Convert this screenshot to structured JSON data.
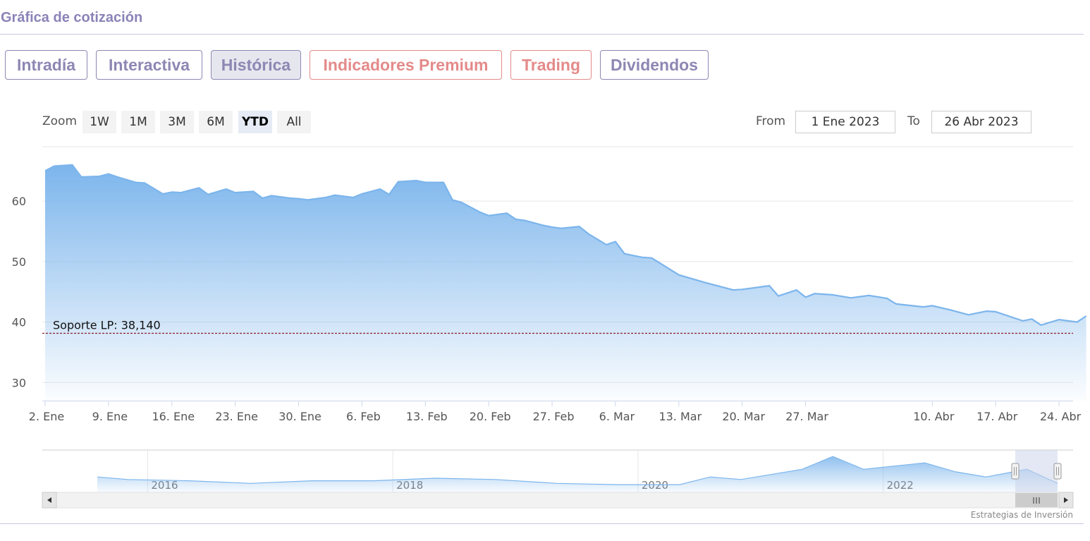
{
  "section_title": "Gráfica de cotización",
  "tabs": [
    {
      "label": "Intradía",
      "active": false,
      "premium": false
    },
    {
      "label": "Interactiva",
      "active": false,
      "premium": false
    },
    {
      "label": "Histórica",
      "active": true,
      "premium": false
    },
    {
      "label": "Indicadores Premium",
      "active": false,
      "premium": true
    },
    {
      "label": "Trading",
      "active": false,
      "premium": true
    },
    {
      "label": "Dividendos",
      "active": false,
      "premium": false
    }
  ],
  "range_selector": {
    "zoom_label": "Zoom",
    "buttons": [
      "1W",
      "1M",
      "3M",
      "6M",
      "YTD",
      "All"
    ],
    "selected": "YTD",
    "from_label": "From",
    "from_value": "1 Ene 2023",
    "to_label": "To",
    "to_value": "26 Abr 2023"
  },
  "credits": "Estrategias de Inversión",
  "colors": {
    "series": "#7cb5ec",
    "support_line": "#8b1a2b",
    "tab_border": "#8d87b3",
    "premium_tab": "#e48a8a",
    "navigator_mask": "#ccd6eb"
  },
  "chart_data": {
    "type": "area",
    "title": "",
    "ylim": [
      27,
      69
    ],
    "y_ticks": [
      30,
      40,
      50,
      60
    ],
    "x_ticks": [
      "2. Ene",
      "9. Ene",
      "16. Ene",
      "23. Ene",
      "30. Ene",
      "6. Feb",
      "13. Feb",
      "20. Feb",
      "27. Feb",
      "6. Mar",
      "13. Mar",
      "20. Mar",
      "27. Mar",
      "10. Abr",
      "17. Abr",
      "24. Abr"
    ],
    "grid": true,
    "x_range": [
      "2023-01-02",
      "2023-04-26"
    ],
    "series": [
      {
        "values": [
          [
            "2023-01-02",
            65.0
          ],
          [
            "2023-01-03",
            65.8
          ],
          [
            "2023-01-05",
            66.0
          ],
          [
            "2023-01-06",
            64.0
          ],
          [
            "2023-01-08",
            64.1
          ],
          [
            "2023-01-09",
            64.5
          ],
          [
            "2023-01-10",
            64.0
          ],
          [
            "2023-01-12",
            63.1
          ],
          [
            "2023-01-13",
            63.0
          ],
          [
            "2023-01-15",
            61.2
          ],
          [
            "2023-01-16",
            61.5
          ],
          [
            "2023-01-17",
            61.4
          ],
          [
            "2023-01-19",
            62.2
          ],
          [
            "2023-01-20",
            61.1
          ],
          [
            "2023-01-22",
            62.0
          ],
          [
            "2023-01-23",
            61.4
          ],
          [
            "2023-01-25",
            61.6
          ],
          [
            "2023-01-26",
            60.5
          ],
          [
            "2023-01-27",
            60.9
          ],
          [
            "2023-01-29",
            60.5
          ],
          [
            "2023-01-30",
            60.4
          ],
          [
            "2023-01-31",
            60.2
          ],
          [
            "2023-02-02",
            60.6
          ],
          [
            "2023-02-03",
            61.0
          ],
          [
            "2023-02-05",
            60.6
          ],
          [
            "2023-02-06",
            61.2
          ],
          [
            "2023-02-08",
            62.0
          ],
          [
            "2023-02-09",
            61.1
          ],
          [
            "2023-02-10",
            63.2
          ],
          [
            "2023-02-12",
            63.4
          ],
          [
            "2023-02-13",
            63.1
          ],
          [
            "2023-02-15",
            63.1
          ],
          [
            "2023-02-16",
            60.2
          ],
          [
            "2023-02-17",
            59.8
          ],
          [
            "2023-02-19",
            58.2
          ],
          [
            "2023-02-20",
            57.6
          ],
          [
            "2023-02-22",
            58.0
          ],
          [
            "2023-02-23",
            57.0
          ],
          [
            "2023-02-24",
            56.8
          ],
          [
            "2023-02-26",
            56.0
          ],
          [
            "2023-02-27",
            55.7
          ],
          [
            "2023-02-28",
            55.5
          ],
          [
            "2023-03-02",
            55.8
          ],
          [
            "2023-03-03",
            54.6
          ],
          [
            "2023-03-05",
            52.8
          ],
          [
            "2023-03-06",
            53.3
          ],
          [
            "2023-03-07",
            51.3
          ],
          [
            "2023-03-09",
            50.7
          ],
          [
            "2023-03-10",
            50.6
          ],
          [
            "2023-03-13",
            47.8
          ],
          [
            "2023-03-16",
            46.5
          ],
          [
            "2023-03-19",
            45.3
          ],
          [
            "2023-03-20",
            45.4
          ],
          [
            "2023-03-23",
            46.0
          ],
          [
            "2023-03-24",
            44.3
          ],
          [
            "2023-03-26",
            45.3
          ],
          [
            "2023-03-27",
            44.1
          ],
          [
            "2023-03-28",
            44.7
          ],
          [
            "2023-03-30",
            44.5
          ],
          [
            "2023-04-01",
            44.0
          ],
          [
            "2023-04-03",
            44.4
          ],
          [
            "2023-04-05",
            43.9
          ],
          [
            "2023-04-06",
            43.0
          ],
          [
            "2023-04-09",
            42.5
          ],
          [
            "2023-04-10",
            42.7
          ],
          [
            "2023-04-12",
            42.0
          ],
          [
            "2023-04-14",
            41.2
          ],
          [
            "2023-04-16",
            41.8
          ],
          [
            "2023-04-17",
            41.7
          ],
          [
            "2023-04-20",
            40.2
          ],
          [
            "2023-04-21",
            40.5
          ],
          [
            "2023-04-22",
            39.5
          ],
          [
            "2023-04-24",
            40.4
          ],
          [
            "2023-04-26",
            40.0
          ],
          [
            "2023-04-27",
            41.0
          ]
        ]
      }
    ],
    "annotations": [
      {
        "type": "horizontal_line",
        "value": 38.14,
        "label": "Soporte LP: 38,140",
        "style": "dashed"
      }
    ],
    "navigator": {
      "x_ticks": [
        "2016",
        "2018",
        "2020",
        "2022"
      ],
      "selected_range": [
        "2023-01-01",
        "2023-04-26"
      ],
      "values": [
        [
          "2015-06",
          34
        ],
        [
          "2015-09",
          32
        ],
        [
          "2016-03",
          31
        ],
        [
          "2016-09",
          29
        ],
        [
          "2017-03",
          31
        ],
        [
          "2017-09",
          31
        ],
        [
          "2018-03",
          33
        ],
        [
          "2018-09",
          32
        ],
        [
          "2019-03",
          29
        ],
        [
          "2019-09",
          28
        ],
        [
          "2020-03",
          28
        ],
        [
          "2020-06",
          34
        ],
        [
          "2020-09",
          32
        ],
        [
          "2021-03",
          40
        ],
        [
          "2021-06",
          50
        ],
        [
          "2021-09",
          40
        ],
        [
          "2022-03",
          45
        ],
        [
          "2022-06",
          38
        ],
        [
          "2022-09",
          34
        ],
        [
          "2023-01",
          40
        ],
        [
          "2023-04",
          29
        ]
      ]
    }
  }
}
